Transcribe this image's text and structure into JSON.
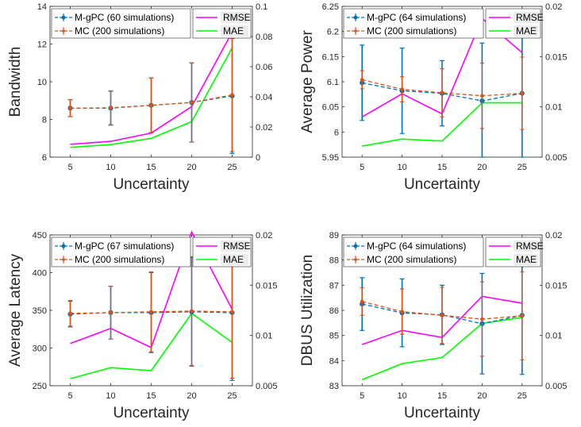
{
  "chart_data": [
    {
      "type": "line",
      "xlabel": "Uncertainty",
      "ylabel": "Bandwidth",
      "x": [
        5,
        10,
        15,
        20,
        25
      ],
      "ylim": [
        6,
        14
      ],
      "y_ticks": [
        "6",
        "8",
        "10",
        "12",
        "14"
      ],
      "y2lim": [
        0,
        0.1
      ],
      "y2_ticks": [
        "0",
        "0.02",
        "0.04",
        "0.06",
        "0.08",
        "0.1"
      ],
      "series": [
        {
          "name": "M-gPC (60 simulations)",
          "axis": "left",
          "color": "#0072BD",
          "style": "dashed-errorbar",
          "values": [
            8.6,
            8.6,
            8.75,
            8.9,
            9.25
          ],
          "err": [
            0.45,
            0.9,
            1.45,
            2.1,
            3.05
          ]
        },
        {
          "name": "MC (200 simulations)",
          "axis": "left",
          "color": "#D95319",
          "style": "dashed-errorbar",
          "values": [
            8.6,
            8.62,
            8.75,
            8.9,
            9.3
          ],
          "err": [
            0.45,
            0.9,
            1.45,
            2.1,
            3.0
          ]
        },
        {
          "name": "RMSE",
          "axis": "right",
          "color": "#FF00FF",
          "style": "solid",
          "values": [
            0.0085,
            0.0105,
            0.016,
            0.0335,
            0.083
          ]
        },
        {
          "name": "MAE",
          "axis": "right",
          "color": "#00FF00",
          "style": "solid",
          "values": [
            0.0065,
            0.0083,
            0.0125,
            0.0235,
            0.0725
          ]
        }
      ]
    },
    {
      "type": "line",
      "xlabel": "Uncertainty",
      "ylabel": "Average Power",
      "x": [
        5,
        10,
        15,
        20,
        25
      ],
      "ylim": [
        5.95,
        6.25
      ],
      "y_ticks": [
        "5.95",
        "6",
        "6.05",
        "6.1",
        "6.15",
        "6.2",
        "6.25"
      ],
      "y2lim": [
        0.005,
        0.02
      ],
      "y2_ticks": [
        "0.005",
        "0.01",
        "0.015",
        "0.02"
      ],
      "series": [
        {
          "name": "M-gPC (64 simulations)",
          "axis": "left",
          "color": "#0072BD",
          "style": "dashed-errorbar",
          "values": [
            6.098,
            6.082,
            6.077,
            6.062,
            6.077
          ],
          "err": [
            0.075,
            0.085,
            0.065,
            0.115,
            0.128
          ]
        },
        {
          "name": "MC (200 simulations)",
          "axis": "left",
          "color": "#D95319",
          "style": "dashed-errorbar",
          "values": [
            6.104,
            6.085,
            6.078,
            6.072,
            6.077
          ],
          "err": [
            0.018,
            0.025,
            0.048,
            0.065,
            0.072
          ]
        },
        {
          "name": "RMSE",
          "axis": "right",
          "color": "#FF00FF",
          "style": "solid",
          "values": [
            0.009,
            0.0113,
            0.0093,
            0.0188,
            0.0154
          ]
        },
        {
          "name": "MAE",
          "axis": "right",
          "color": "#00FF00",
          "style": "solid",
          "values": [
            0.0061,
            0.0068,
            0.0066,
            0.0104,
            0.0104
          ]
        }
      ]
    },
    {
      "type": "line",
      "xlabel": "Uncertainty",
      "ylabel": "Average Latency",
      "x": [
        5,
        10,
        15,
        20,
        25
      ],
      "ylim": [
        250,
        450
      ],
      "y_ticks": [
        "250",
        "300",
        "350",
        "400",
        "450"
      ],
      "y2lim": [
        0.005,
        0.02
      ],
      "y2_ticks": [
        "0.005",
        "0.01",
        "0.015",
        "0.02"
      ],
      "series": [
        {
          "name": "M-gPC (67 simulations)",
          "axis": "left",
          "color": "#0072BD",
          "style": "dashed-errorbar",
          "values": [
            345,
            347,
            347,
            348,
            347
          ],
          "err": [
            17,
            35,
            53,
            72,
            90
          ]
        },
        {
          "name": "MC (200 simulations)",
          "axis": "left",
          "color": "#D95319",
          "style": "dashed-errorbar",
          "values": [
            346,
            347,
            348,
            349,
            348
          ],
          "err": [
            17,
            35,
            53,
            72,
            88
          ]
        },
        {
          "name": "RMSE",
          "axis": "right",
          "color": "#FF00FF",
          "style": "solid",
          "values": [
            0.0092,
            0.0107,
            0.0088,
            0.0203,
            0.0126
          ]
        },
        {
          "name": "MAE",
          "axis": "right",
          "color": "#00FF00",
          "style": "solid",
          "values": [
            0.0057,
            0.0068,
            0.0065,
            0.0122,
            0.0093
          ]
        }
      ]
    },
    {
      "type": "line",
      "xlabel": "Uncertainty",
      "ylabel": "DBUS Utilization",
      "x": [
        5,
        10,
        15,
        20,
        25
      ],
      "ylim": [
        83,
        89
      ],
      "y_ticks": [
        "83",
        "84",
        "85",
        "86",
        "87",
        "88",
        "89"
      ],
      "y2lim": [
        0.005,
        0.02
      ],
      "y2_ticks": [
        "0.005",
        "0.01",
        "0.015",
        "0.02"
      ],
      "series": [
        {
          "name": "M-gPC (64 simulations)",
          "axis": "left",
          "color": "#0072BD",
          "style": "dashed-errorbar",
          "values": [
            86.25,
            85.9,
            85.82,
            85.47,
            85.8
          ],
          "err": [
            1.05,
            1.35,
            1.18,
            2.0,
            2.35
          ]
        },
        {
          "name": "MC (200 simulations)",
          "axis": "left",
          "color": "#D95319",
          "style": "dashed-errorbar",
          "values": [
            86.35,
            85.95,
            85.8,
            85.65,
            85.78
          ],
          "err": [
            0.55,
            0.9,
            1.12,
            1.48,
            1.75
          ]
        },
        {
          "name": "RMSE",
          "axis": "right",
          "color": "#FF00FF",
          "style": "solid",
          "values": [
            0.0091,
            0.0105,
            0.0098,
            0.0139,
            0.0132
          ]
        },
        {
          "name": "MAE",
          "axis": "right",
          "color": "#00FF00",
          "style": "solid",
          "values": [
            0.0056,
            0.0072,
            0.0078,
            0.0112,
            0.0118
          ]
        }
      ]
    }
  ]
}
